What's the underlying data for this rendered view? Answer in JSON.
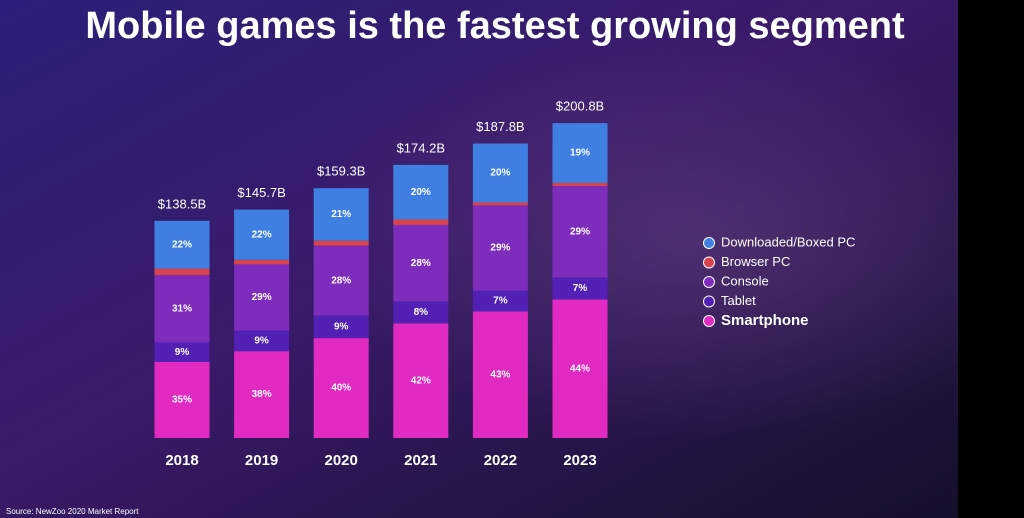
{
  "chart_data": {
    "type": "stacked-bar",
    "title": "Mobile games is the fastest growing segment",
    "source": "Source: NewZoo 2020 Market Report",
    "categories": [
      "2018",
      "2019",
      "2020",
      "2021",
      "2022",
      "2023"
    ],
    "totals": {
      "values": [
        138.5,
        145.7,
        159.3,
        174.2,
        187.8,
        200.8
      ],
      "value_labels": [
        "$138.5B",
        "$145.7B",
        "$159.3B",
        "$174.2B",
        "$187.8B",
        "$200.8B"
      ]
    },
    "series": [
      {
        "name": "Smartphone",
        "color": "#e02ac2",
        "values": [
          35,
          38,
          40,
          42,
          43,
          44
        ],
        "value_labels": [
          "35%",
          "38%",
          "40%",
          "42%",
          "43%",
          "44%"
        ]
      },
      {
        "name": "Tablet",
        "color": "#5220b4",
        "values": [
          9,
          9,
          9,
          8,
          7,
          7
        ],
        "value_labels": [
          "9%",
          "9%",
          "9%",
          "8%",
          "7%",
          "7%"
        ]
      },
      {
        "name": "Console",
        "color": "#7d2cbc",
        "values": [
          31,
          29,
          28,
          28,
          29,
          29
        ],
        "value_labels": [
          "31%",
          "29%",
          "28%",
          "28%",
          "29%",
          "29%"
        ]
      },
      {
        "name": "Browser PC",
        "color": "#d9434c",
        "values": [
          3,
          2,
          2,
          2,
          1,
          1
        ],
        "value_labels": [
          "3%",
          "2%",
          "2%",
          "2%",
          "1%",
          "1%"
        ]
      },
      {
        "name": "Downloaded/Boxed PC",
        "color": "#3f7fe2",
        "values": [
          22,
          22,
          21,
          20,
          20,
          19
        ],
        "value_labels": [
          "22%",
          "22%",
          "21%",
          "20%",
          "20%",
          "19%"
        ]
      }
    ],
    "legend": "right"
  }
}
